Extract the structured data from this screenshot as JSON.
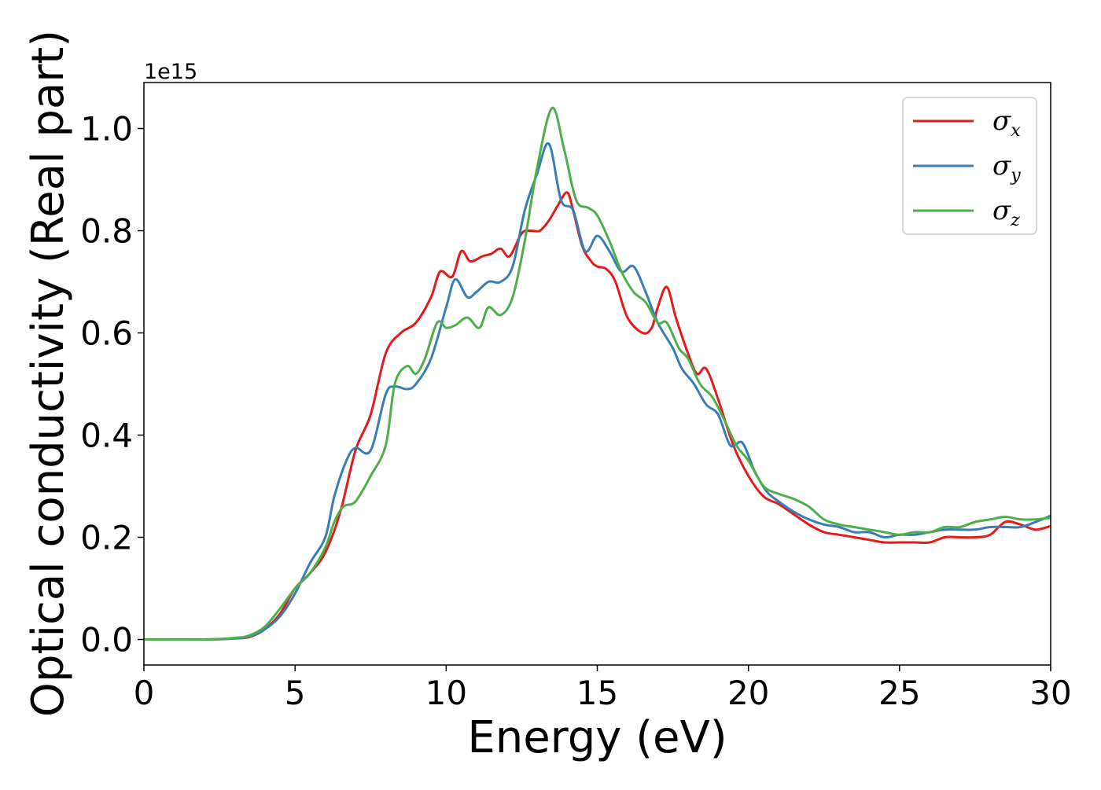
{
  "chart_data": {
    "type": "line",
    "xlabel": "Energy (eV)",
    "ylabel": "Optical conductivity (Real part)",
    "y_offset_label": "1e15",
    "xlim": [
      0,
      30
    ],
    "ylim": [
      -0.05,
      1.09
    ],
    "xticks": [
      {
        "value": 0,
        "label": "0"
      },
      {
        "value": 5,
        "label": "5"
      },
      {
        "value": 10,
        "label": "10"
      },
      {
        "value": 15,
        "label": "15"
      },
      {
        "value": 20,
        "label": "20"
      },
      {
        "value": 25,
        "label": "25"
      },
      {
        "value": 30,
        "label": "30"
      }
    ],
    "yticks": [
      {
        "value": 0.0,
        "label": "0.0"
      },
      {
        "value": 0.2,
        "label": "0.2"
      },
      {
        "value": 0.4,
        "label": "0.4"
      },
      {
        "value": 0.6,
        "label": "0.6"
      },
      {
        "value": 0.8,
        "label": "0.8"
      },
      {
        "value": 1.0,
        "label": "1.0"
      }
    ],
    "grid": false,
    "legend_position": "top-right",
    "series": [
      {
        "name": "σx",
        "symbol": "σ",
        "subscript": "x",
        "color": "#e41a1c",
        "points": [
          [
            0,
            0
          ],
          [
            2,
            0
          ],
          [
            3,
            0.002
          ],
          [
            3.5,
            0.005
          ],
          [
            4,
            0.02
          ],
          [
            4.5,
            0.05
          ],
          [
            5,
            0.1
          ],
          [
            5.5,
            0.13
          ],
          [
            6,
            0.17
          ],
          [
            6.5,
            0.25
          ],
          [
            7,
            0.37
          ],
          [
            7.5,
            0.44
          ],
          [
            8,
            0.56
          ],
          [
            8.5,
            0.6
          ],
          [
            9,
            0.62
          ],
          [
            9.5,
            0.67
          ],
          [
            9.8,
            0.72
          ],
          [
            10.2,
            0.71
          ],
          [
            10.5,
            0.76
          ],
          [
            10.8,
            0.74
          ],
          [
            11.2,
            0.75
          ],
          [
            11.5,
            0.755
          ],
          [
            11.8,
            0.765
          ],
          [
            12.1,
            0.75
          ],
          [
            12.5,
            0.795
          ],
          [
            12.8,
            0.8
          ],
          [
            13.1,
            0.8
          ],
          [
            13.4,
            0.82
          ],
          [
            13.7,
            0.85
          ],
          [
            14.0,
            0.875
          ],
          [
            14.2,
            0.84
          ],
          [
            14.5,
            0.77
          ],
          [
            14.8,
            0.74
          ],
          [
            15.0,
            0.73
          ],
          [
            15.3,
            0.725
          ],
          [
            15.6,
            0.7
          ],
          [
            16.0,
            0.63
          ],
          [
            16.5,
            0.6
          ],
          [
            16.8,
            0.61
          ],
          [
            17.0,
            0.65
          ],
          [
            17.3,
            0.69
          ],
          [
            17.6,
            0.63
          ],
          [
            18.0,
            0.56
          ],
          [
            18.3,
            0.52
          ],
          [
            18.6,
            0.53
          ],
          [
            19.0,
            0.47
          ],
          [
            19.5,
            0.38
          ],
          [
            20.0,
            0.32
          ],
          [
            20.5,
            0.28
          ],
          [
            21.0,
            0.265
          ],
          [
            21.5,
            0.245
          ],
          [
            22.0,
            0.225
          ],
          [
            22.5,
            0.21
          ],
          [
            23.0,
            0.205
          ],
          [
            23.5,
            0.2
          ],
          [
            24.0,
            0.195
          ],
          [
            24.5,
            0.19
          ],
          [
            25.0,
            0.19
          ],
          [
            25.5,
            0.19
          ],
          [
            26.0,
            0.19
          ],
          [
            26.5,
            0.2
          ],
          [
            27.0,
            0.2
          ],
          [
            27.5,
            0.2
          ],
          [
            28.0,
            0.205
          ],
          [
            28.5,
            0.23
          ],
          [
            29.0,
            0.225
          ],
          [
            29.5,
            0.215
          ],
          [
            30.0,
            0.222
          ]
        ]
      },
      {
        "name": "σy",
        "symbol": "σ",
        "subscript": "y",
        "color": "#377eb8",
        "points": [
          [
            0,
            0
          ],
          [
            2,
            0
          ],
          [
            3,
            0.002
          ],
          [
            3.5,
            0.006
          ],
          [
            4,
            0.02
          ],
          [
            4.5,
            0.045
          ],
          [
            5,
            0.09
          ],
          [
            5.5,
            0.15
          ],
          [
            6,
            0.2
          ],
          [
            6.3,
            0.28
          ],
          [
            6.7,
            0.35
          ],
          [
            7,
            0.375
          ],
          [
            7.5,
            0.37
          ],
          [
            8,
            0.48
          ],
          [
            8.3,
            0.495
          ],
          [
            8.7,
            0.49
          ],
          [
            9,
            0.5
          ],
          [
            9.5,
            0.55
          ],
          [
            10.0,
            0.65
          ],
          [
            10.3,
            0.705
          ],
          [
            10.7,
            0.67
          ],
          [
            11,
            0.68
          ],
          [
            11.4,
            0.7
          ],
          [
            11.8,
            0.7
          ],
          [
            12.2,
            0.73
          ],
          [
            12.6,
            0.84
          ],
          [
            13.0,
            0.91
          ],
          [
            13.4,
            0.97
          ],
          [
            13.8,
            0.86
          ],
          [
            14.2,
            0.84
          ],
          [
            14.6,
            0.76
          ],
          [
            15.0,
            0.79
          ],
          [
            15.4,
            0.76
          ],
          [
            15.8,
            0.72
          ],
          [
            16.2,
            0.73
          ],
          [
            16.6,
            0.68
          ],
          [
            17.0,
            0.62
          ],
          [
            17.5,
            0.57
          ],
          [
            17.8,
            0.53
          ],
          [
            18.2,
            0.5
          ],
          [
            18.6,
            0.46
          ],
          [
            19.0,
            0.44
          ],
          [
            19.4,
            0.38
          ],
          [
            19.8,
            0.385
          ],
          [
            20.2,
            0.33
          ],
          [
            20.6,
            0.29
          ],
          [
            21.0,
            0.27
          ],
          [
            21.5,
            0.25
          ],
          [
            22.0,
            0.235
          ],
          [
            22.5,
            0.225
          ],
          [
            23.0,
            0.22
          ],
          [
            23.5,
            0.21
          ],
          [
            24.0,
            0.21
          ],
          [
            24.5,
            0.2
          ],
          [
            25.0,
            0.205
          ],
          [
            25.5,
            0.205
          ],
          [
            26.0,
            0.21
          ],
          [
            26.5,
            0.215
          ],
          [
            27.0,
            0.215
          ],
          [
            27.5,
            0.215
          ],
          [
            28.0,
            0.22
          ],
          [
            28.5,
            0.22
          ],
          [
            29.0,
            0.22
          ],
          [
            29.5,
            0.23
          ],
          [
            30.0,
            0.242
          ]
        ]
      },
      {
        "name": "σz",
        "symbol": "σ",
        "subscript": "z",
        "color": "#4daf4a",
        "points": [
          [
            0,
            0
          ],
          [
            2,
            0
          ],
          [
            3,
            0.003
          ],
          [
            3.5,
            0.008
          ],
          [
            4,
            0.025
          ],
          [
            4.5,
            0.06
          ],
          [
            5,
            0.1
          ],
          [
            5.5,
            0.13
          ],
          [
            6,
            0.18
          ],
          [
            6.3,
            0.23
          ],
          [
            6.6,
            0.26
          ],
          [
            7,
            0.27
          ],
          [
            7.5,
            0.32
          ],
          [
            8,
            0.38
          ],
          [
            8.3,
            0.5
          ],
          [
            8.7,
            0.535
          ],
          [
            9,
            0.52
          ],
          [
            9.3,
            0.55
          ],
          [
            9.7,
            0.62
          ],
          [
            10.0,
            0.61
          ],
          [
            10.3,
            0.615
          ],
          [
            10.7,
            0.63
          ],
          [
            11.1,
            0.61
          ],
          [
            11.4,
            0.65
          ],
          [
            11.8,
            0.635
          ],
          [
            12.2,
            0.67
          ],
          [
            12.6,
            0.78
          ],
          [
            13.0,
            0.92
          ],
          [
            13.5,
            1.04
          ],
          [
            13.9,
            0.96
          ],
          [
            14.3,
            0.86
          ],
          [
            14.7,
            0.845
          ],
          [
            15.0,
            0.83
          ],
          [
            15.4,
            0.78
          ],
          [
            15.8,
            0.72
          ],
          [
            16.2,
            0.68
          ],
          [
            16.6,
            0.66
          ],
          [
            17.0,
            0.62
          ],
          [
            17.3,
            0.62
          ],
          [
            17.7,
            0.57
          ],
          [
            18.0,
            0.55
          ],
          [
            18.4,
            0.5
          ],
          [
            18.8,
            0.475
          ],
          [
            19.2,
            0.43
          ],
          [
            19.6,
            0.38
          ],
          [
            20.0,
            0.35
          ],
          [
            20.5,
            0.3
          ],
          [
            21.0,
            0.285
          ],
          [
            21.5,
            0.275
          ],
          [
            22.0,
            0.26
          ],
          [
            22.5,
            0.235
          ],
          [
            23.0,
            0.225
          ],
          [
            23.5,
            0.22
          ],
          [
            24.0,
            0.215
          ],
          [
            24.5,
            0.21
          ],
          [
            25.0,
            0.205
          ],
          [
            25.5,
            0.21
          ],
          [
            26.0,
            0.21
          ],
          [
            26.5,
            0.22
          ],
          [
            27.0,
            0.22
          ],
          [
            27.5,
            0.23
          ],
          [
            28.0,
            0.235
          ],
          [
            28.5,
            0.24
          ],
          [
            29.0,
            0.235
          ],
          [
            29.5,
            0.235
          ],
          [
            30.0,
            0.238
          ]
        ]
      }
    ]
  }
}
